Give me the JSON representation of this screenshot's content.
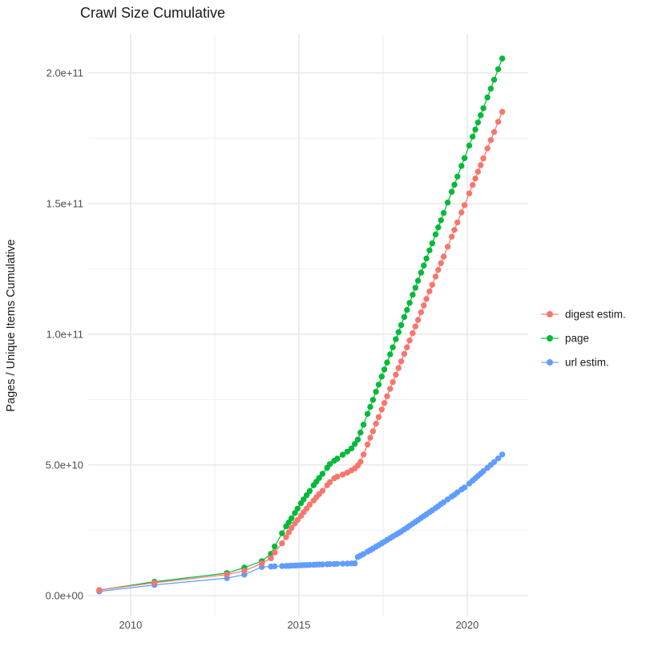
{
  "chart_data": {
    "type": "line",
    "title": "Crawl Size Cumulative",
    "xlabel": "",
    "ylabel": "Pages / Unique Items Cumulative",
    "y_unit_multiplier": 1000000000.0,
    "xlim": [
      2008.74,
      2021.81
    ],
    "ylim_e9": [
      -8,
      215
    ],
    "grid": true,
    "legend_position": "right",
    "x_ticks": [
      {
        "v": 2010,
        "label": "2010"
      },
      {
        "v": 2015,
        "label": "2015"
      },
      {
        "v": 2020,
        "label": "2020"
      }
    ],
    "x_minor": [
      2012.5,
      2017.5
    ],
    "y_ticks": [
      {
        "v": 0,
        "label": "0.0e+00"
      },
      {
        "v": 50,
        "label": "5.0e+10"
      },
      {
        "v": 100,
        "label": "1.0e+11"
      },
      {
        "v": 150,
        "label": "1.5e+11"
      },
      {
        "v": 200,
        "label": "2.0e+11"
      }
    ],
    "y_minor": [
      25,
      75,
      125,
      175
    ],
    "legend": [
      {
        "label": "digest estim.",
        "color": "#F8766D"
      },
      {
        "label": "page",
        "color": "#00BA38"
      },
      {
        "label": "url estim.",
        "color": "#619CFF"
      }
    ],
    "series": [
      {
        "name": "url estim.",
        "color": "#619CFF",
        "points": [
          [
            2009.07,
            1.6
          ],
          [
            2010.71,
            4.1
          ],
          [
            2012.86,
            6.7
          ],
          [
            2013.38,
            8
          ],
          [
            2013.9,
            11
          ],
          [
            2014.17,
            11.1
          ],
          [
            2014.28,
            11.2
          ],
          [
            2014.5,
            11.3
          ],
          [
            2014.62,
            11.35
          ],
          [
            2014.7,
            11.4
          ],
          [
            2014.78,
            11.45
          ],
          [
            2014.88,
            11.5
          ],
          [
            2014.96,
            11.55
          ],
          [
            2015.06,
            11.6
          ],
          [
            2015.14,
            11.65
          ],
          [
            2015.23,
            11.7
          ],
          [
            2015.32,
            11.75
          ],
          [
            2015.44,
            11.8
          ],
          [
            2015.52,
            11.85
          ],
          [
            2015.6,
            11.9
          ],
          [
            2015.7,
            11.95
          ],
          [
            2015.84,
            12
          ],
          [
            2015.92,
            12.05
          ],
          [
            2016.05,
            12.1
          ],
          [
            2016.14,
            12.15
          ],
          [
            2016.3,
            12.2
          ],
          [
            2016.44,
            12.25
          ],
          [
            2016.56,
            12.3
          ],
          [
            2016.66,
            12.35
          ],
          [
            2016.75,
            14.8
          ],
          [
            2016.83,
            15.3
          ],
          [
            2016.92,
            15.9
          ],
          [
            2017.04,
            16.8
          ],
          [
            2017.12,
            17.4
          ],
          [
            2017.2,
            18
          ],
          [
            2017.29,
            18.7
          ],
          [
            2017.37,
            19.3
          ],
          [
            2017.46,
            20
          ],
          [
            2017.54,
            20.6
          ],
          [
            2017.62,
            21.3
          ],
          [
            2017.71,
            22
          ],
          [
            2017.79,
            22.6
          ],
          [
            2017.88,
            23.3
          ],
          [
            2017.96,
            23.9
          ],
          [
            2018.04,
            24.5
          ],
          [
            2018.13,
            25.3
          ],
          [
            2018.21,
            26
          ],
          [
            2018.29,
            26.7
          ],
          [
            2018.38,
            27.5
          ],
          [
            2018.46,
            28.2
          ],
          [
            2018.54,
            28.9
          ],
          [
            2018.63,
            29.7
          ],
          [
            2018.71,
            30.4
          ],
          [
            2018.79,
            31.1
          ],
          [
            2018.88,
            31.9
          ],
          [
            2018.96,
            32.6
          ],
          [
            2019.06,
            33.5
          ],
          [
            2019.14,
            34.2
          ],
          [
            2019.22,
            35
          ],
          [
            2019.3,
            35.7
          ],
          [
            2019.42,
            36.8
          ],
          [
            2019.54,
            37.9
          ],
          [
            2019.62,
            38.6
          ],
          [
            2019.71,
            39.5
          ],
          [
            2019.83,
            40.6
          ],
          [
            2019.92,
            41.4
          ],
          [
            2020.06,
            42.9
          ],
          [
            2020.16,
            44
          ],
          [
            2020.24,
            44.9
          ],
          [
            2020.32,
            45.8
          ],
          [
            2020.4,
            46.7
          ],
          [
            2020.48,
            47.6
          ],
          [
            2020.6,
            48.9
          ],
          [
            2020.7,
            50
          ],
          [
            2020.8,
            51.1
          ],
          [
            2020.92,
            52.5
          ],
          [
            2021.04,
            54
          ]
        ]
      },
      {
        "name": "page",
        "color": "#00BA38",
        "points": [
          [
            2009.07,
            2.1
          ],
          [
            2010.71,
            5.3
          ],
          [
            2012.86,
            8.6
          ],
          [
            2013.38,
            10.7
          ],
          [
            2013.9,
            13.2
          ],
          [
            2014.17,
            16
          ],
          [
            2014.28,
            18.8
          ],
          [
            2014.5,
            23.8
          ],
          [
            2014.62,
            26.5
          ],
          [
            2014.7,
            28
          ],
          [
            2014.78,
            29.6
          ],
          [
            2014.88,
            31.6
          ],
          [
            2014.96,
            33.3
          ],
          [
            2015.06,
            35.3
          ],
          [
            2015.14,
            36.8
          ],
          [
            2015.23,
            38.4
          ],
          [
            2015.32,
            40
          ],
          [
            2015.44,
            42.2
          ],
          [
            2015.52,
            43.6
          ],
          [
            2015.6,
            45
          ],
          [
            2015.7,
            46.6
          ],
          [
            2015.84,
            48.9
          ],
          [
            2015.92,
            50.3
          ],
          [
            2016.05,
            51.6
          ],
          [
            2016.14,
            52.4
          ],
          [
            2016.3,
            53.9
          ],
          [
            2016.44,
            55.1
          ],
          [
            2016.56,
            56.3
          ],
          [
            2016.66,
            58
          ],
          [
            2016.75,
            59.7
          ],
          [
            2016.83,
            62.4
          ],
          [
            2016.92,
            65.4
          ],
          [
            2017.04,
            69.5
          ],
          [
            2017.12,
            72.2
          ],
          [
            2017.2,
            74.9
          ],
          [
            2017.29,
            78
          ],
          [
            2017.37,
            80.7
          ],
          [
            2017.46,
            83.8
          ],
          [
            2017.54,
            86.5
          ],
          [
            2017.62,
            89.2
          ],
          [
            2017.71,
            92.3
          ],
          [
            2017.79,
            95
          ],
          [
            2017.88,
            98.1
          ],
          [
            2017.96,
            100.8
          ],
          [
            2018.04,
            103.5
          ],
          [
            2018.13,
            106.6
          ],
          [
            2018.21,
            109.3
          ],
          [
            2018.29,
            112
          ],
          [
            2018.38,
            115.1
          ],
          [
            2018.46,
            117.8
          ],
          [
            2018.54,
            120.5
          ],
          [
            2018.63,
            123.6
          ],
          [
            2018.71,
            126.3
          ],
          [
            2018.79,
            129
          ],
          [
            2018.88,
            132.1
          ],
          [
            2018.96,
            134.8
          ],
          [
            2019.06,
            138.2
          ],
          [
            2019.14,
            140.9
          ],
          [
            2019.22,
            143.6
          ],
          [
            2019.3,
            146.4
          ],
          [
            2019.42,
            150.4
          ],
          [
            2019.54,
            154.5
          ],
          [
            2019.62,
            157.2
          ],
          [
            2019.71,
            160.3
          ],
          [
            2019.83,
            164.4
          ],
          [
            2019.92,
            167.4
          ],
          [
            2020.06,
            172.2
          ],
          [
            2020.16,
            175.6
          ],
          [
            2020.24,
            178.3
          ],
          [
            2020.32,
            181
          ],
          [
            2020.4,
            183.8
          ],
          [
            2020.48,
            186.5
          ],
          [
            2020.6,
            190.6
          ],
          [
            2020.7,
            194
          ],
          [
            2020.8,
            197.4
          ],
          [
            2020.92,
            201.4
          ],
          [
            2021.04,
            205.5
          ]
        ]
      },
      {
        "name": "digest estim.",
        "color": "#F8766D",
        "points": [
          [
            2009.07,
            2.1
          ],
          [
            2010.71,
            4.9
          ],
          [
            2012.86,
            8
          ],
          [
            2013.38,
            9.5
          ],
          [
            2013.9,
            12.3
          ],
          [
            2014.17,
            14.3
          ],
          [
            2014.28,
            16.5
          ],
          [
            2014.5,
            20
          ],
          [
            2014.62,
            22.4
          ],
          [
            2014.7,
            24.2
          ],
          [
            2014.78,
            25.9
          ],
          [
            2014.88,
            27.6
          ],
          [
            2014.96,
            29
          ],
          [
            2015.06,
            30.5
          ],
          [
            2015.14,
            31.9
          ],
          [
            2015.23,
            33.3
          ],
          [
            2015.32,
            34.8
          ],
          [
            2015.44,
            36.4
          ],
          [
            2015.52,
            37.6
          ],
          [
            2015.6,
            38.8
          ],
          [
            2015.7,
            40.1
          ],
          [
            2015.84,
            42.2
          ],
          [
            2015.92,
            43.4
          ],
          [
            2016.05,
            44.9
          ],
          [
            2016.14,
            45.5
          ],
          [
            2016.3,
            46.3
          ],
          [
            2016.44,
            47.1
          ],
          [
            2016.56,
            47.9
          ],
          [
            2016.66,
            48.7
          ],
          [
            2016.75,
            49.8
          ],
          [
            2016.83,
            51.2
          ],
          [
            2016.92,
            54
          ],
          [
            2017.04,
            57.8
          ],
          [
            2017.12,
            60.4
          ],
          [
            2017.2,
            62.9
          ],
          [
            2017.29,
            65.8
          ],
          [
            2017.37,
            68.3
          ],
          [
            2017.46,
            71.2
          ],
          [
            2017.54,
            73.7
          ],
          [
            2017.62,
            76.3
          ],
          [
            2017.71,
            79.1
          ],
          [
            2017.79,
            81.7
          ],
          [
            2017.88,
            84.5
          ],
          [
            2017.96,
            87.1
          ],
          [
            2018.04,
            89.6
          ],
          [
            2018.13,
            92.5
          ],
          [
            2018.21,
            95
          ],
          [
            2018.29,
            97.6
          ],
          [
            2018.38,
            100.4
          ],
          [
            2018.46,
            103
          ],
          [
            2018.54,
            105.5
          ],
          [
            2018.63,
            108.4
          ],
          [
            2018.71,
            111
          ],
          [
            2018.79,
            113.5
          ],
          [
            2018.88,
            116.4
          ],
          [
            2018.96,
            118.9
          ],
          [
            2019.06,
            122.1
          ],
          [
            2019.14,
            124.6
          ],
          [
            2019.22,
            127.2
          ],
          [
            2019.3,
            129.7
          ],
          [
            2019.42,
            133.5
          ],
          [
            2019.54,
            137.3
          ],
          [
            2019.62,
            139.9
          ],
          [
            2019.71,
            142.8
          ],
          [
            2019.83,
            146.6
          ],
          [
            2019.92,
            149.4
          ],
          [
            2020.06,
            153.9
          ],
          [
            2020.16,
            157.1
          ],
          [
            2020.24,
            159.6
          ],
          [
            2020.32,
            162.2
          ],
          [
            2020.4,
            164.7
          ],
          [
            2020.48,
            167.3
          ],
          [
            2020.6,
            171.1
          ],
          [
            2020.7,
            174.3
          ],
          [
            2020.8,
            177.4
          ],
          [
            2020.92,
            181.3
          ],
          [
            2021.04,
            185.1
          ]
        ]
      }
    ]
  }
}
